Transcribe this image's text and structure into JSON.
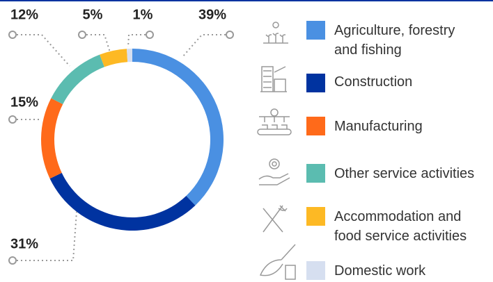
{
  "chart_data": {
    "type": "donut",
    "categories": [
      "Agriculture, forestry and fishing",
      "Construction",
      "Manufacturing",
      "Other service activities",
      "Accommodation and food service activities",
      "Domestic work"
    ],
    "values": [
      39,
      31,
      15,
      12,
      5,
      1
    ],
    "value_labels": [
      "39%",
      "31%",
      "15%",
      "12%",
      "5%",
      "1%"
    ],
    "colors": [
      "#4a90e2",
      "#0033a0",
      "#ff6a1a",
      "#5bbcb0",
      "#fdb924",
      "#d6dff0"
    ]
  }
}
